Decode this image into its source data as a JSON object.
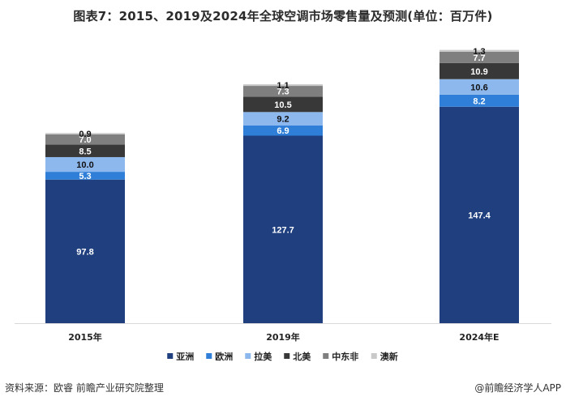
{
  "title": "图表7：2015、2019及2024年全球空调市场零售量及预测(单位：百万件)",
  "footer": {
    "source": "资料来源：欧睿 前瞻产业研究院整理",
    "brand": "@前瞻经济学人APP"
  },
  "chart_data": {
    "type": "bar",
    "stacked": true,
    "categories": [
      "2015年",
      "2019年",
      "2024年E"
    ],
    "series": [
      {
        "name": "亚洲",
        "values": [
          97.8,
          127.7,
          147.4
        ],
        "color": "#1f3f7f",
        "label_color": "#ffffff"
      },
      {
        "name": "欧洲",
        "values": [
          5.3,
          6.9,
          8.2
        ],
        "color": "#2f7fd8",
        "label_color": "#ffffff"
      },
      {
        "name": "拉美",
        "values": [
          10.0,
          9.2,
          10.6
        ],
        "color": "#8db8ee",
        "label_color": "#111111"
      },
      {
        "name": "北美",
        "values": [
          8.5,
          10.5,
          10.9
        ],
        "color": "#383838",
        "label_color": "#ffffff"
      },
      {
        "name": "中东非",
        "values": [
          7.0,
          7.3,
          7.7
        ],
        "color": "#7f7f7f",
        "label_color": "#ffffff"
      },
      {
        "name": "澳新",
        "values": [
          0.9,
          1.1,
          1.3
        ],
        "color": "#c9c9c9",
        "label_color": "#111111"
      }
    ],
    "value_labels": [
      [
        "97.8",
        "127.7",
        "147.4"
      ],
      [
        "5.3",
        "6.9",
        "8.2"
      ],
      [
        "10.0",
        "9.2",
        "10.6"
      ],
      [
        "8.5",
        "10.5",
        "10.9"
      ],
      [
        "7.0",
        "7.3",
        "7.7"
      ],
      [
        "0.9",
        "1.1",
        "1.3"
      ]
    ],
    "ylim": [
      0,
      187
    ],
    "grid": false,
    "legend_position": "bottom"
  }
}
